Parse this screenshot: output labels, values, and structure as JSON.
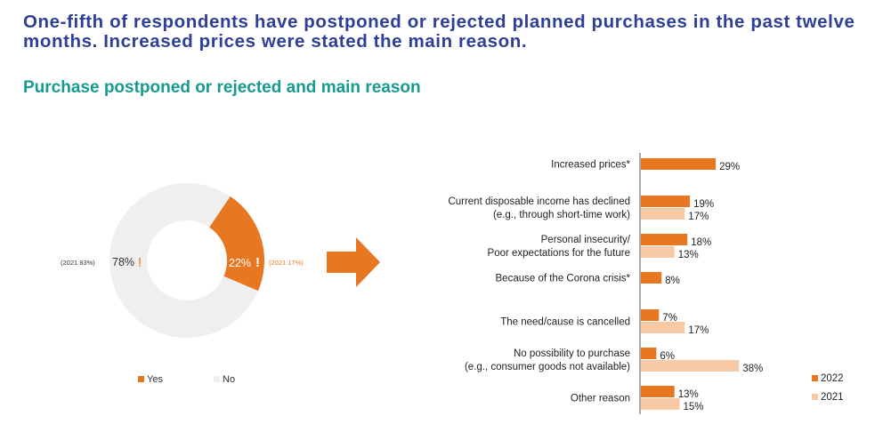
{
  "headline": "One-fifth of respondents have postponed or rejected planned purchases in the past twelve months. Increased prices were stated the main reason.",
  "subhead": "Purchase postponed or rejected and main reason",
  "colors": {
    "series_2022": "#e87722",
    "series_2021": "#f7c9a4",
    "no_slice": "#efefef",
    "headline": "#2e3f98",
    "subhead": "#169b91",
    "axis": "#555555"
  },
  "chart_data": [
    {
      "type": "pie",
      "variant": "donut",
      "slices": [
        {
          "label": "Yes",
          "value": 22,
          "display": "22%",
          "note": "(2021 17%)"
        },
        {
          "label": "No",
          "value": 78,
          "display": "78%",
          "note": "(2021 83%)"
        }
      ],
      "marker": "!",
      "legend": [
        "Yes",
        "No"
      ],
      "legend_position": "bottom"
    },
    {
      "type": "bar",
      "orientation": "horizontal",
      "categories": [
        [
          "Increased prices*"
        ],
        [
          "Current disposable income has declined",
          "(e.g., through short-time work)"
        ],
        [
          "Personal insecurity/",
          "Poor expectations for the future"
        ],
        [
          "Because of the Corona crisis*"
        ],
        [
          "The need/cause is cancelled"
        ],
        [
          "No possibility to purchase",
          "(e.g., consumer goods not available)"
        ],
        [
          "Other reason"
        ]
      ],
      "series": [
        {
          "name": "2022",
          "values": [
            29,
            19,
            18,
            8,
            7,
            6,
            13
          ]
        },
        {
          "name": "2021",
          "values": [
            null,
            17,
            13,
            null,
            17,
            38,
            15
          ]
        }
      ],
      "value_suffix": "%",
      "legend_position": "bottom-right"
    }
  ]
}
